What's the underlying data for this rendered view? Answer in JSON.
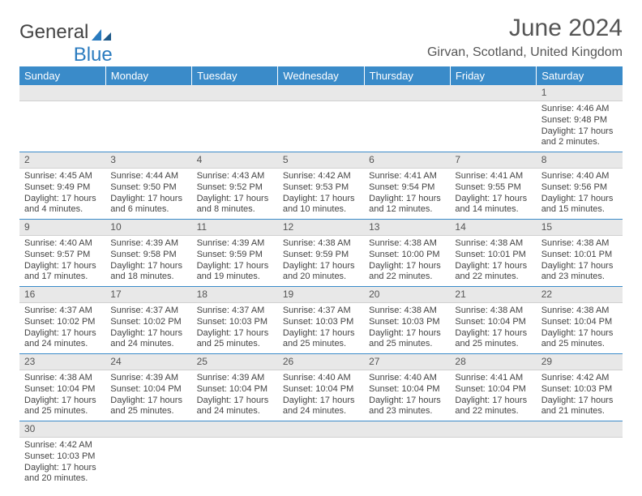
{
  "logo": {
    "text1": "General",
    "text2": "Blue"
  },
  "title": "June 2024",
  "location": "Girvan, Scotland, United Kingdom",
  "colors": {
    "header_bg": "#3a8bc9",
    "header_text": "#ffffff",
    "daynum_bg": "#e8e8e8",
    "border": "#3a8bc9",
    "text": "#444444",
    "logo_blue": "#2a7bbf"
  },
  "dayNames": [
    "Sunday",
    "Monday",
    "Tuesday",
    "Wednesday",
    "Thursday",
    "Friday",
    "Saturday"
  ],
  "weeks": [
    [
      null,
      null,
      null,
      null,
      null,
      null,
      {
        "n": "1",
        "sr": "4:46 AM",
        "ss": "9:48 PM",
        "dl": "17 hours and 2 minutes."
      }
    ],
    [
      {
        "n": "2",
        "sr": "4:45 AM",
        "ss": "9:49 PM",
        "dl": "17 hours and 4 minutes."
      },
      {
        "n": "3",
        "sr": "4:44 AM",
        "ss": "9:50 PM",
        "dl": "17 hours and 6 minutes."
      },
      {
        "n": "4",
        "sr": "4:43 AM",
        "ss": "9:52 PM",
        "dl": "17 hours and 8 minutes."
      },
      {
        "n": "5",
        "sr": "4:42 AM",
        "ss": "9:53 PM",
        "dl": "17 hours and 10 minutes."
      },
      {
        "n": "6",
        "sr": "4:41 AM",
        "ss": "9:54 PM",
        "dl": "17 hours and 12 minutes."
      },
      {
        "n": "7",
        "sr": "4:41 AM",
        "ss": "9:55 PM",
        "dl": "17 hours and 14 minutes."
      },
      {
        "n": "8",
        "sr": "4:40 AM",
        "ss": "9:56 PM",
        "dl": "17 hours and 15 minutes."
      }
    ],
    [
      {
        "n": "9",
        "sr": "4:40 AM",
        "ss": "9:57 PM",
        "dl": "17 hours and 17 minutes."
      },
      {
        "n": "10",
        "sr": "4:39 AM",
        "ss": "9:58 PM",
        "dl": "17 hours and 18 minutes."
      },
      {
        "n": "11",
        "sr": "4:39 AM",
        "ss": "9:59 PM",
        "dl": "17 hours and 19 minutes."
      },
      {
        "n": "12",
        "sr": "4:38 AM",
        "ss": "9:59 PM",
        "dl": "17 hours and 20 minutes."
      },
      {
        "n": "13",
        "sr": "4:38 AM",
        "ss": "10:00 PM",
        "dl": "17 hours and 22 minutes."
      },
      {
        "n": "14",
        "sr": "4:38 AM",
        "ss": "10:01 PM",
        "dl": "17 hours and 22 minutes."
      },
      {
        "n": "15",
        "sr": "4:38 AM",
        "ss": "10:01 PM",
        "dl": "17 hours and 23 minutes."
      }
    ],
    [
      {
        "n": "16",
        "sr": "4:37 AM",
        "ss": "10:02 PM",
        "dl": "17 hours and 24 minutes."
      },
      {
        "n": "17",
        "sr": "4:37 AM",
        "ss": "10:02 PM",
        "dl": "17 hours and 24 minutes."
      },
      {
        "n": "18",
        "sr": "4:37 AM",
        "ss": "10:03 PM",
        "dl": "17 hours and 25 minutes."
      },
      {
        "n": "19",
        "sr": "4:37 AM",
        "ss": "10:03 PM",
        "dl": "17 hours and 25 minutes."
      },
      {
        "n": "20",
        "sr": "4:38 AM",
        "ss": "10:03 PM",
        "dl": "17 hours and 25 minutes."
      },
      {
        "n": "21",
        "sr": "4:38 AM",
        "ss": "10:04 PM",
        "dl": "17 hours and 25 minutes."
      },
      {
        "n": "22",
        "sr": "4:38 AM",
        "ss": "10:04 PM",
        "dl": "17 hours and 25 minutes."
      }
    ],
    [
      {
        "n": "23",
        "sr": "4:38 AM",
        "ss": "10:04 PM",
        "dl": "17 hours and 25 minutes."
      },
      {
        "n": "24",
        "sr": "4:39 AM",
        "ss": "10:04 PM",
        "dl": "17 hours and 25 minutes."
      },
      {
        "n": "25",
        "sr": "4:39 AM",
        "ss": "10:04 PM",
        "dl": "17 hours and 24 minutes."
      },
      {
        "n": "26",
        "sr": "4:40 AM",
        "ss": "10:04 PM",
        "dl": "17 hours and 24 minutes."
      },
      {
        "n": "27",
        "sr": "4:40 AM",
        "ss": "10:04 PM",
        "dl": "17 hours and 23 minutes."
      },
      {
        "n": "28",
        "sr": "4:41 AM",
        "ss": "10:04 PM",
        "dl": "17 hours and 22 minutes."
      },
      {
        "n": "29",
        "sr": "4:42 AM",
        "ss": "10:03 PM",
        "dl": "17 hours and 21 minutes."
      }
    ],
    [
      {
        "n": "30",
        "sr": "4:42 AM",
        "ss": "10:03 PM",
        "dl": "17 hours and 20 minutes."
      },
      null,
      null,
      null,
      null,
      null,
      null
    ]
  ],
  "labels": {
    "sunrise": "Sunrise: ",
    "sunset": "Sunset: ",
    "daylight": "Daylight: "
  }
}
